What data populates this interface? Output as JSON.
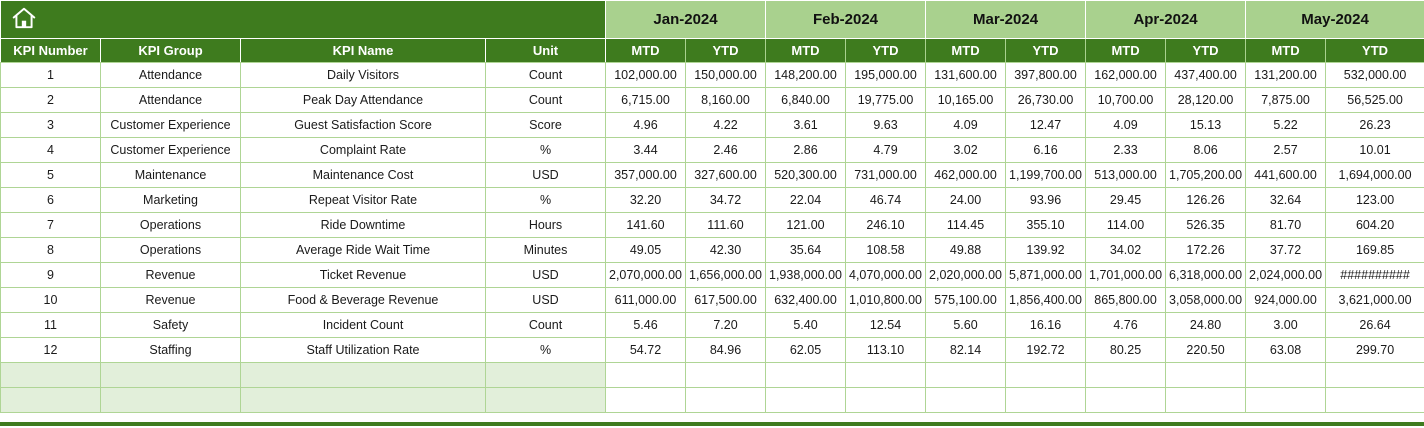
{
  "header": {
    "months": [
      "Jan-2024",
      "Feb-2024",
      "Mar-2024",
      "Apr-2024",
      "May-2024"
    ],
    "label_columns": [
      "KPI Number",
      "KPI Group",
      "KPI Name",
      "Unit"
    ],
    "sub_columns": [
      "MTD",
      "YTD"
    ]
  },
  "table": {
    "rows": [
      {
        "number": "1",
        "group": "Attendance",
        "name": "Daily Visitors",
        "unit": "Count",
        "values": [
          "102,000.00",
          "150,000.00",
          "148,200.00",
          "195,000.00",
          "131,600.00",
          "397,800.00",
          "162,000.00",
          "437,400.00",
          "131,200.00",
          "532,000.00"
        ]
      },
      {
        "number": "2",
        "group": "Attendance",
        "name": "Peak Day Attendance",
        "unit": "Count",
        "values": [
          "6,715.00",
          "8,160.00",
          "6,840.00",
          "19,775.00",
          "10,165.00",
          "26,730.00",
          "10,700.00",
          "28,120.00",
          "7,875.00",
          "56,525.00"
        ]
      },
      {
        "number": "3",
        "group": "Customer Experience",
        "name": "Guest Satisfaction Score",
        "unit": "Score",
        "values": [
          "4.96",
          "4.22",
          "3.61",
          "9.63",
          "4.09",
          "12.47",
          "4.09",
          "15.13",
          "5.22",
          "26.23"
        ]
      },
      {
        "number": "4",
        "group": "Customer Experience",
        "name": "Complaint Rate",
        "unit": "%",
        "values": [
          "3.44",
          "2.46",
          "2.86",
          "4.79",
          "3.02",
          "6.16",
          "2.33",
          "8.06",
          "2.57",
          "10.01"
        ]
      },
      {
        "number": "5",
        "group": "Maintenance",
        "name": "Maintenance Cost",
        "unit": "USD",
        "values": [
          "357,000.00",
          "327,600.00",
          "520,300.00",
          "731,000.00",
          "462,000.00",
          "1,199,700.00",
          "513,000.00",
          "1,705,200.00",
          "441,600.00",
          "1,694,000.00"
        ]
      },
      {
        "number": "6",
        "group": "Marketing",
        "name": "Repeat Visitor Rate",
        "unit": "%",
        "values": [
          "32.20",
          "34.72",
          "22.04",
          "46.74",
          "24.00",
          "93.96",
          "29.45",
          "126.26",
          "32.64",
          "123.00"
        ]
      },
      {
        "number": "7",
        "group": "Operations",
        "name": "Ride Downtime",
        "unit": "Hours",
        "values": [
          "141.60",
          "111.60",
          "121.00",
          "246.10",
          "114.45",
          "355.10",
          "114.00",
          "526.35",
          "81.70",
          "604.20"
        ]
      },
      {
        "number": "8",
        "group": "Operations",
        "name": "Average Ride Wait Time",
        "unit": "Minutes",
        "values": [
          "49.05",
          "42.30",
          "35.64",
          "108.58",
          "49.88",
          "139.92",
          "34.02",
          "172.26",
          "37.72",
          "169.85"
        ]
      },
      {
        "number": "9",
        "group": "Revenue",
        "name": "Ticket Revenue",
        "unit": "USD",
        "values": [
          "2,070,000.00",
          "1,656,000.00",
          "1,938,000.00",
          "4,070,000.00",
          "2,020,000.00",
          "5,871,000.00",
          "1,701,000.00",
          "6,318,000.00",
          "2,024,000.00",
          "##########"
        ]
      },
      {
        "number": "10",
        "group": "Revenue",
        "name": "Food & Beverage Revenue",
        "unit": "USD",
        "values": [
          "611,000.00",
          "617,500.00",
          "632,400.00",
          "1,010,800.00",
          "575,100.00",
          "1,856,400.00",
          "865,800.00",
          "3,058,000.00",
          "924,000.00",
          "3,621,000.00"
        ]
      },
      {
        "number": "11",
        "group": "Safety",
        "name": "Incident Count",
        "unit": "Count",
        "values": [
          "5.46",
          "7.20",
          "5.40",
          "12.54",
          "5.60",
          "16.16",
          "4.76",
          "24.80",
          "3.00",
          "26.64"
        ]
      },
      {
        "number": "12",
        "group": "Staffing",
        "name": "Staff Utilization Rate",
        "unit": "%",
        "values": [
          "54.72",
          "84.96",
          "62.05",
          "113.10",
          "82.14",
          "192.72",
          "80.25",
          "220.50",
          "63.08",
          "299.70"
        ]
      }
    ],
    "empty_row_count": 2
  },
  "icons": {
    "home": "home-icon"
  },
  "colors": {
    "dark_green": "#3E7B1E",
    "light_green": "#A9D18E",
    "pale_green": "#E2EFDA",
    "grid_line": "#AFD595"
  }
}
